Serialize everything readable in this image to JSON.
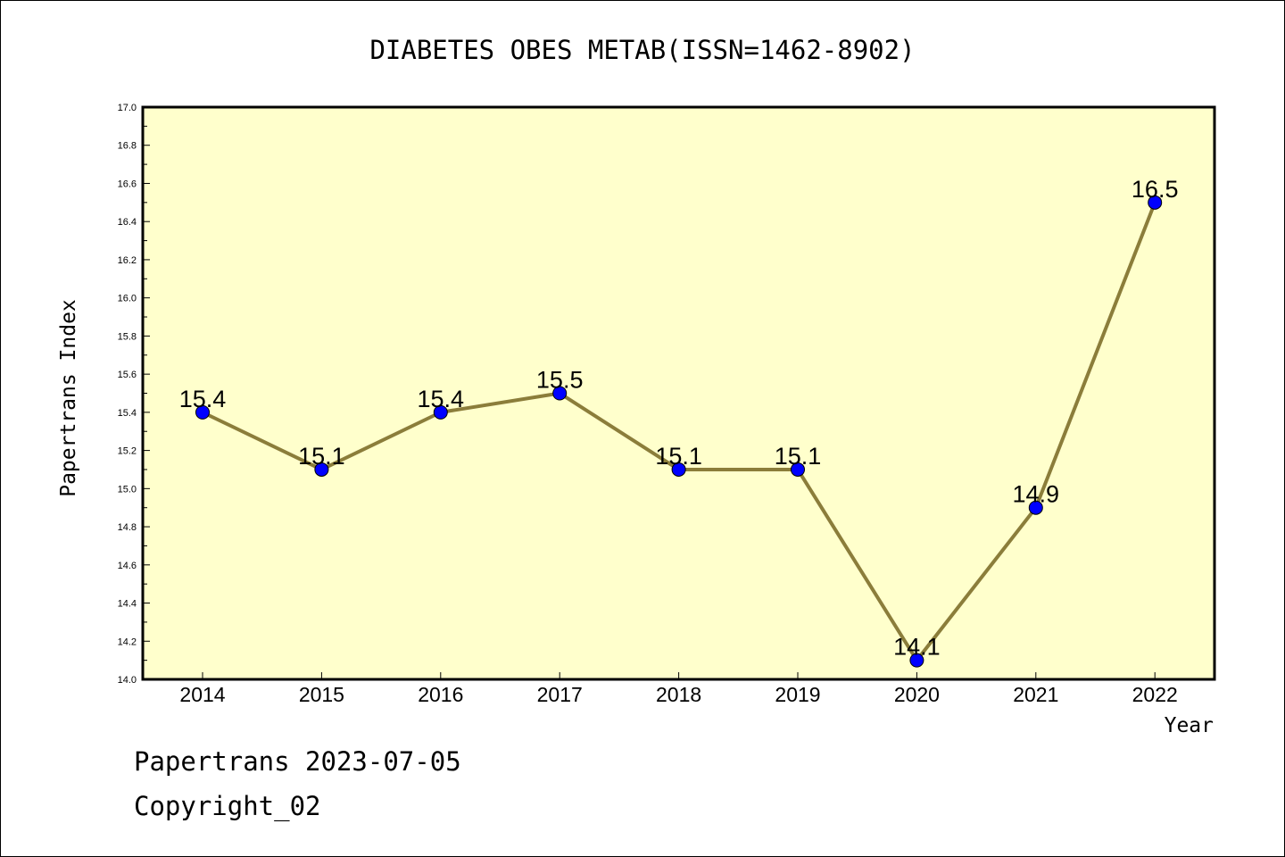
{
  "chart_data": {
    "type": "line",
    "title": "DIABETES OBES METAB(ISSN=1462-8902)",
    "xlabel": "Year",
    "ylabel": "Papertrans Index",
    "categories": [
      "2014",
      "2015",
      "2016",
      "2017",
      "2018",
      "2019",
      "2020",
      "2021",
      "2022"
    ],
    "series": [
      {
        "values": [
          15.4,
          15.1,
          15.4,
          15.5,
          15.1,
          15.1,
          14.1,
          14.9,
          16.5
        ],
        "labels": [
          "15.4",
          "15.1",
          "15.4",
          "15.5",
          "15.1",
          "15.1",
          "14.1",
          "14.9",
          "16.5"
        ]
      }
    ],
    "ylim": [
      14.0,
      17.0
    ],
    "yticks": [
      "14.0",
      "14.2",
      "14.4",
      "14.6",
      "14.8",
      "15.0",
      "15.2",
      "15.4",
      "15.6",
      "15.8",
      "16.0",
      "16.2",
      "16.4",
      "16.6",
      "16.8",
      "17.0"
    ],
    "grid": false,
    "colors": {
      "plot_background": "#ffffcc",
      "line": "#8b7d3a",
      "marker": "#0000ff"
    }
  },
  "footer": {
    "date_line": "Papertrans 2023-07-05",
    "copyright": "Copyright_02"
  }
}
